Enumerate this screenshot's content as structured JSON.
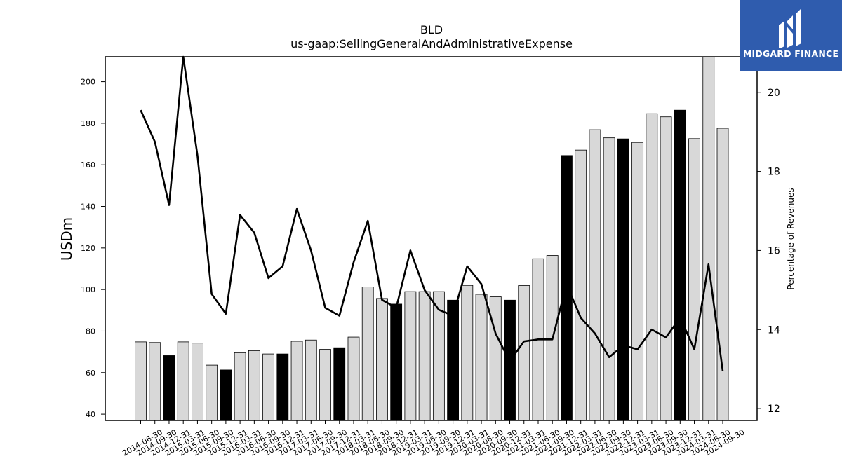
{
  "chart_data": {
    "type": "bar+line",
    "title": "BLD",
    "subtitle": "us-gaap:SellingGeneralAndAdministrativeExpense",
    "ylabel": "USDm",
    "ylabel_right": "Percentage of Revenues",
    "ylim": [
      37,
      212
    ],
    "ylim_right": [
      11.7,
      20.9
    ],
    "yticks": [
      40,
      60,
      80,
      100,
      120,
      140,
      160,
      180,
      200
    ],
    "yticks_right": [
      12,
      14,
      16,
      18,
      20
    ],
    "categories": [
      "2014-06-30",
      "2014-09-30",
      "2014-12-31",
      "2015-03-31",
      "2015-06-30",
      "2015-09-30",
      "2015-12-31",
      "2016-03-31",
      "2016-06-30",
      "2016-09-30",
      "2016-12-31",
      "2017-03-31",
      "2017-06-30",
      "2017-09-30",
      "2017-12-31",
      "2018-03-31",
      "2018-06-30",
      "2018-09-30",
      "2018-12-31",
      "2019-03-31",
      "2019-06-30",
      "2019-09-30",
      "2019-12-31",
      "2020-03-31",
      "2020-06-30",
      "2020-09-30",
      "2020-12-31",
      "2021-03-31",
      "2021-06-30",
      "2021-09-30",
      "2021-12-31",
      "2022-03-31",
      "2022-06-30",
      "2022-09-30",
      "2022-12-31",
      "2023-03-31",
      "2023-06-30",
      "2023-09-30",
      "2023-12-31",
      "2024-03-31",
      "2024-06-30",
      "2024-09-30"
    ],
    "series": [
      {
        "type": "bar",
        "values": [
          74.8,
          74.5,
          68.2,
          74.8,
          74.2,
          63.6,
          61.3,
          69.6,
          70.6,
          69.0,
          69.0,
          75.1,
          75.7,
          71.2,
          72.0,
          77.1,
          101.2,
          95.7,
          93.0,
          99.0,
          99.0,
          99.0,
          94.9,
          102.0,
          97.7,
          96.5,
          94.9,
          101.9,
          114.8,
          116.4,
          164.5,
          167.1,
          176.9,
          173.0,
          172.5,
          170.8,
          184.6,
          183.1,
          186.3,
          172.6,
          212.5,
          177.6
        ],
        "highlight": [
          false,
          false,
          true,
          false,
          false,
          false,
          true,
          false,
          false,
          false,
          true,
          false,
          false,
          false,
          true,
          false,
          false,
          false,
          true,
          false,
          false,
          false,
          true,
          false,
          false,
          false,
          true,
          false,
          false,
          false,
          true,
          false,
          false,
          false,
          true,
          false,
          false,
          false,
          true,
          false,
          false,
          false
        ],
        "color": "#d8d8d8",
        "highlight_color": "#000000"
      },
      {
        "type": "line",
        "axis": "right",
        "color": "#000000",
        "values": [
          19.55,
          18.75,
          17.15,
          21.0,
          18.4,
          14.9,
          14.4,
          16.9,
          16.45,
          15.3,
          15.6,
          17.05,
          16.0,
          14.55,
          14.35,
          15.7,
          16.75,
          14.75,
          14.55,
          16.0,
          15.0,
          14.5,
          14.35,
          15.6,
          15.15,
          13.9,
          13.2,
          13.7,
          13.75,
          13.75,
          15.15,
          14.3,
          13.9,
          13.3,
          13.6,
          13.5,
          14.0,
          13.8,
          14.3,
          13.5,
          15.65,
          12.95
        ]
      }
    ]
  },
  "logo": {
    "text": "MIDGARD FINANCE",
    "icon": "midgard-bars-icon",
    "color": "#2f5cae"
  }
}
